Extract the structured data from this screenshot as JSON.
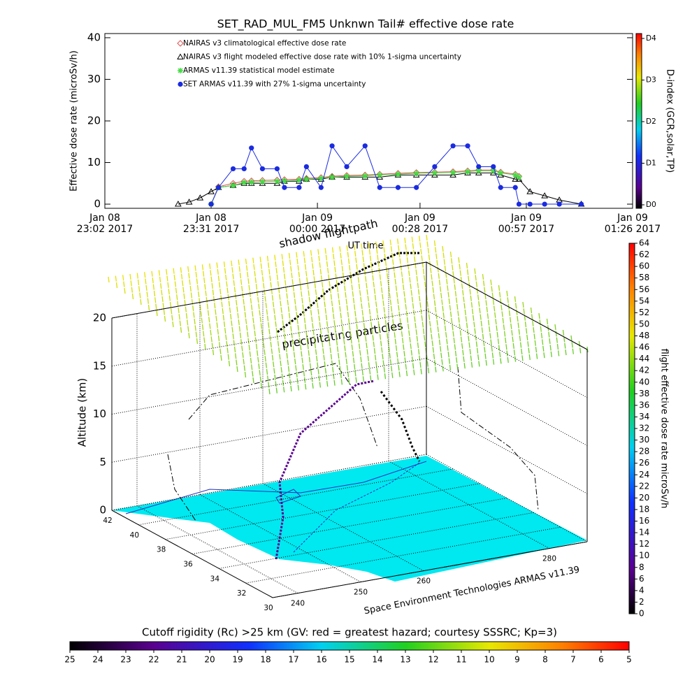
{
  "chart_data": [
    {
      "type": "line",
      "title": "SET_RAD_MUL_FM5 Unknwn Tail#  effective dose rate",
      "xlabel": "UT time",
      "ylabel": "Effective dose rate (microSv/h)",
      "xlim": [
        "2017-01-08T23:02",
        "2017-01-09T01:26"
      ],
      "xticks": [
        {
          "value": "2017-01-08T23:02",
          "label": [
            "Jan 08",
            "23:02 2017"
          ]
        },
        {
          "value": "2017-01-08T23:31",
          "label": [
            "Jan 08",
            "23:31 2017"
          ]
        },
        {
          "value": "2017-01-09T00:00",
          "label": [
            "Jan 09",
            "00:00 2017"
          ]
        },
        {
          "value": "2017-01-09T00:28",
          "label": [
            "Jan 09",
            "00:28 2017"
          ]
        },
        {
          "value": "2017-01-09T00:57",
          "label": [
            "Jan 09",
            "00:57 2017"
          ]
        },
        {
          "value": "2017-01-09T01:26",
          "label": [
            "Jan 09",
            "01:26 2017"
          ]
        }
      ],
      "ylim": [
        -1,
        41
      ],
      "yticks": [
        0,
        10,
        20,
        30,
        40
      ],
      "x": [
        "2017-01-08T23:22",
        "2017-01-08T23:25",
        "2017-01-08T23:28",
        "2017-01-08T23:31",
        "2017-01-08T23:33",
        "2017-01-08T23:37",
        "2017-01-08T23:40",
        "2017-01-08T23:42",
        "2017-01-08T23:45",
        "2017-01-08T23:49",
        "2017-01-08T23:51",
        "2017-01-08T23:55",
        "2017-01-08T23:57",
        "2017-01-09T00:01",
        "2017-01-09T00:04",
        "2017-01-09T00:08",
        "2017-01-09T00:13",
        "2017-01-09T00:17",
        "2017-01-09T00:22",
        "2017-01-09T00:27",
        "2017-01-09T00:32",
        "2017-01-09T00:37",
        "2017-01-09T00:41",
        "2017-01-09T00:44",
        "2017-01-09T00:48",
        "2017-01-09T00:50",
        "2017-01-09T00:54",
        "2017-01-09T00:55",
        "2017-01-09T00:58",
        "2017-01-09T01:02",
        "2017-01-09T01:06",
        "2017-01-09T01:12"
      ],
      "series": [
        {
          "name": "NAIRAS v3 climatological effective dose rate",
          "color": "#e05050",
          "marker": "diamond",
          "values": [
            null,
            null,
            null,
            0,
            4.2,
            5,
            5.5,
            5.6,
            5.7,
            5.8,
            5.9,
            6,
            6.2,
            6.4,
            6.7,
            6.9,
            7,
            7.2,
            7.4,
            7.6,
            7.7,
            7.8,
            8,
            8.2,
            8.2,
            7.7,
            7.2,
            6.7,
            null,
            null,
            null,
            null
          ]
        },
        {
          "name": "NAIRAS v3 flight modeled effective dose rate with 10% 1-sigma uncertainty",
          "color": "#000000",
          "marker": "triangle",
          "values": [
            0,
            0.5,
            1.5,
            3,
            4,
            4.5,
            5,
            5,
            5,
            5,
            5.5,
            5.5,
            6,
            6,
            6.5,
            6.5,
            6.5,
            6.5,
            7,
            7,
            7,
            7,
            7.5,
            7.5,
            7.5,
            7,
            6,
            6,
            3,
            2,
            1,
            0
          ]
        },
        {
          "name": "ARMAS v11.39 statistical model estimate",
          "color": "#44dd44",
          "marker": "asterisk",
          "values": [
            null,
            null,
            null,
            0,
            4,
            4.5,
            5.2,
            5.3,
            5.4,
            5.5,
            5.6,
            5.8,
            6,
            6.2,
            6.5,
            6.7,
            6.8,
            7,
            7.2,
            7.4,
            7.5,
            7.6,
            7.8,
            8,
            8,
            7.5,
            7,
            6.5,
            null,
            null,
            null,
            null
          ]
        },
        {
          "name": "SET ARMAS v11.39 with 27% 1-sigma uncertainty",
          "color": "#1a2be0",
          "marker": "circle",
          "values": [
            null,
            null,
            null,
            0,
            4,
            8.5,
            8.5,
            13.5,
            8.5,
            8.5,
            4,
            4,
            9,
            4,
            14,
            9,
            14,
            4,
            4,
            4,
            9,
            14,
            14,
            9,
            9,
            4,
            4,
            0,
            0,
            0,
            0,
            0
          ]
        }
      ],
      "dindex": {
        "label": "D-index (GCR,solar,TP)",
        "lim": [
          0,
          4
        ],
        "ticks": [
          {
            "value": 0,
            "label": "D0"
          },
          {
            "value": 1,
            "label": "D1"
          },
          {
            "value": 2,
            "label": "D2"
          },
          {
            "value": 3,
            "label": "D3"
          },
          {
            "value": 4,
            "label": "D4"
          }
        ]
      }
    },
    {
      "type": "surface3d",
      "zlabel": "Altitude (km)",
      "zlim": [
        0,
        20
      ],
      "zticks": [
        0,
        5,
        10,
        15,
        20
      ],
      "latlim": [
        30,
        42
      ],
      "latticks": [
        30,
        32,
        34,
        36,
        38,
        40,
        42
      ],
      "lonlim": [
        236,
        286
      ],
      "lonticks": [
        240,
        250,
        260,
        280
      ],
      "annotations": [
        "shadow flightpath",
        "precipitating particles"
      ],
      "credit": "Space Environment Technologies ARMAS v11.39"
    },
    {
      "type": "colorbar",
      "orientation": "vertical",
      "label": "flight effective dose rate microSv/h",
      "lim": [
        0,
        64
      ],
      "ticks": [
        0,
        2,
        4,
        6,
        8,
        10,
        12,
        14,
        16,
        18,
        20,
        22,
        24,
        26,
        28,
        30,
        32,
        34,
        36,
        38,
        40,
        42,
        44,
        46,
        48,
        50,
        52,
        54,
        56,
        58,
        60,
        62,
        64
      ]
    },
    {
      "type": "colorbar",
      "orientation": "horizontal",
      "label": "Cutoff rigidity (Rc) >25 km (GV: red = greatest hazard; courtesy SSSRC; Kp=3)",
      "lim": [
        25,
        5
      ],
      "ticks": [
        25,
        24,
        23,
        22,
        21,
        20,
        19,
        18,
        17,
        16,
        15,
        14,
        13,
        12,
        11,
        10,
        9,
        8,
        7,
        6,
        5
      ]
    }
  ]
}
